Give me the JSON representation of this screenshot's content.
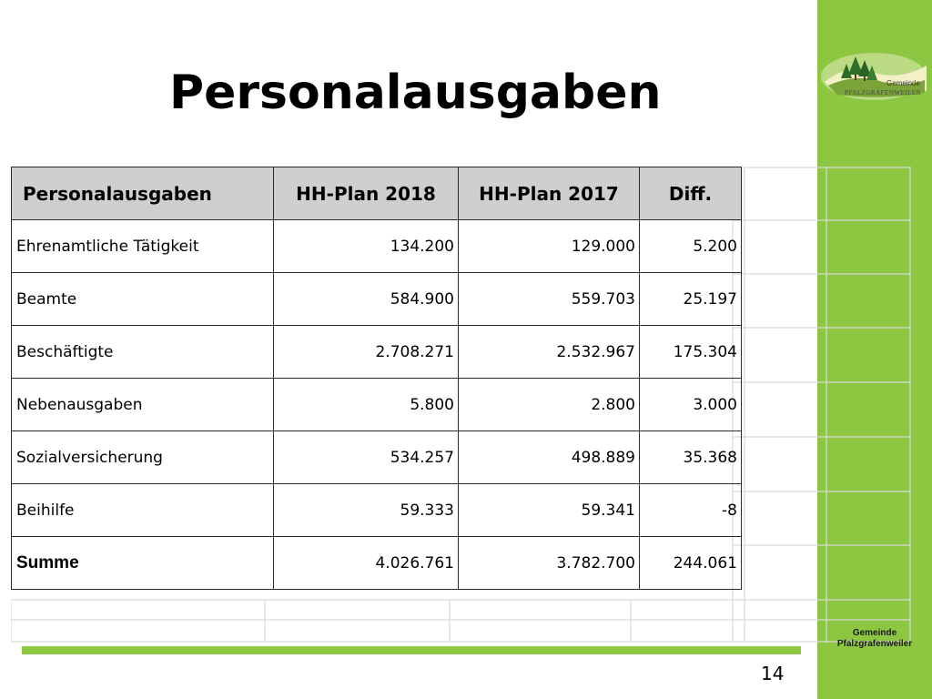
{
  "slide": {
    "title": "Personalausgaben",
    "page_number": "14",
    "organization_footer_line1": "Gemeinde",
    "organization_footer_line2": "Pfalzgrafenweiler",
    "logo_text_line1": "Gemeinde",
    "logo_text_line2": "Pfalzgrafenweiler",
    "colors": {
      "accent_green": "#8dc641",
      "header_fill": "#cfcfcf"
    }
  },
  "table": {
    "headers": [
      "Personalausgaben",
      "HH-Plan 2018",
      "HH-Plan 2017",
      "Diff."
    ],
    "rows": [
      {
        "label": "Ehrenamtliche Tätigkeit",
        "plan2018": "134.200",
        "plan2017": "129.000",
        "diff": "5.200"
      },
      {
        "label": "Beamte",
        "plan2018": "584.900",
        "plan2017": "559.703",
        "diff": "25.197"
      },
      {
        "label": "Beschäftigte",
        "plan2018": "2.708.271",
        "plan2017": "2.532.967",
        "diff": "175.304"
      },
      {
        "label": "Nebenausgaben",
        "plan2018": "5.800",
        "plan2017": "2.800",
        "diff": "3.000"
      },
      {
        "label": "Sozialversicherung",
        "plan2018": "534.257",
        "plan2017": "498.889",
        "diff": "35.368"
      },
      {
        "label": "Beihilfe",
        "plan2018": "59.333",
        "plan2017": "59.341",
        "diff": "-8"
      },
      {
        "label": "Summe",
        "plan2018": "4.026.761",
        "plan2017": "3.782.700",
        "diff": "244.061"
      }
    ]
  }
}
